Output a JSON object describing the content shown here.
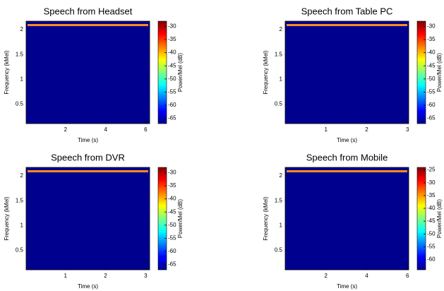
{
  "chart_data": [
    {
      "type": "heatmap",
      "title": "Speech from Headset",
      "x_label": "Time (s)",
      "y_label": "Frequency (kMel)",
      "colorbar_label": "Power/Mel (dB)",
      "xlim": [
        0.03,
        6.2
      ],
      "xticks": [
        2,
        4,
        6
      ],
      "ylim": [
        0.11,
        2.17
      ],
      "yticks": [
        0.5,
        1,
        1.5,
        2
      ],
      "clim": [
        -67,
        -28
      ],
      "cticks": [
        -30,
        -35,
        -40,
        -45,
        -50,
        -55,
        -60,
        -65
      ],
      "colormap": "jet"
    },
    {
      "type": "heatmap",
      "title": "Speech from Table PC",
      "x_label": "Time (s)",
      "y_label": "Frequency (kMel)",
      "colorbar_label": "Power/Mel (dB)",
      "xlim": [
        0,
        3.03
      ],
      "xticks": [
        1,
        2,
        3
      ],
      "ylim": [
        0.11,
        2.17
      ],
      "yticks": [
        0.5,
        1,
        1.5,
        2
      ],
      "clim": [
        -67,
        -28
      ],
      "cticks": [
        -30,
        -35,
        -40,
        -45,
        -50,
        -55,
        -60,
        -65
      ],
      "colormap": "jet"
    },
    {
      "type": "heatmap",
      "title": "Speech from DVR",
      "x_label": "Time (s)",
      "y_label": "Frequency (kMel)",
      "colorbar_label": "Power/Mel (dB)",
      "xlim": [
        0.02,
        3.1
      ],
      "xticks": [
        1,
        2,
        3
      ],
      "ylim": [
        0.11,
        2.17
      ],
      "yticks": [
        0.5,
        1,
        1.5,
        2
      ],
      "clim": [
        -67,
        -28
      ],
      "cticks": [
        -30,
        -35,
        -40,
        -45,
        -50,
        -55,
        -60,
        -65
      ],
      "colormap": "jet"
    },
    {
      "type": "heatmap",
      "title": "Speech from Mobile",
      "x_label": "Time (s)",
      "y_label": "Frequency (kMel)",
      "colorbar_label": "Power/Mel (dB)",
      "xlim": [
        0,
        6.06
      ],
      "xticks": [
        2,
        4,
        6
      ],
      "ylim": [
        0.11,
        2.17
      ],
      "yticks": [
        0.5,
        1,
        1.5,
        2
      ],
      "clim": [
        -64,
        -24
      ],
      "cticks": [
        -25,
        -30,
        -35,
        -40,
        -45,
        -50,
        -55,
        -60
      ],
      "colormap": "jet"
    }
  ]
}
